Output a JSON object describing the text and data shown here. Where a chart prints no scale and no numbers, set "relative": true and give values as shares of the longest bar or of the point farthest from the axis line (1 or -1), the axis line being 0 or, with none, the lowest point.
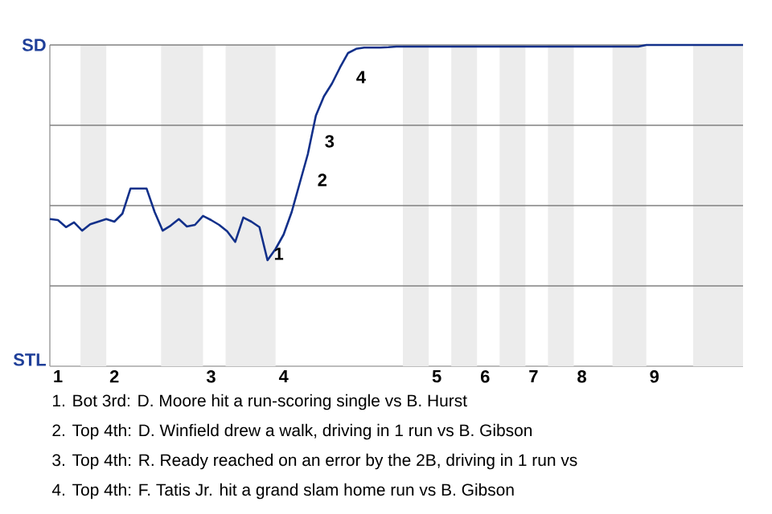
{
  "chart_data": {
    "type": "line",
    "relative": true,
    "categories": [
      null,
      "1",
      null,
      null,
      null,
      null,
      null,
      null,
      "2",
      null,
      null,
      null,
      null,
      null,
      null,
      null,
      null,
      null,
      null,
      null,
      "3",
      null,
      null,
      null,
      null,
      null,
      null,
      null,
      null,
      "4",
      null,
      null,
      null,
      null,
      null,
      null,
      null,
      null,
      null,
      null,
      null,
      null,
      null,
      null,
      null,
      null,
      null,
      null,
      "5",
      null,
      null,
      null,
      null,
      null,
      "6",
      null,
      null,
      null,
      null,
      null,
      "7",
      null,
      null,
      null,
      null,
      null,
      "8",
      null,
      null,
      null,
      null,
      null,
      null,
      null,
      null,
      "9",
      null,
      null,
      null,
      null,
      null,
      null,
      null,
      null,
      null,
      null,
      null
    ],
    "series": [
      {
        "color": "#12308a",
        "values": [
          0.458,
          0.455,
          0.433,
          0.448,
          0.422,
          0.442,
          0.45,
          0.458,
          0.45,
          0.475,
          0.553,
          0.553,
          0.553,
          0.48,
          0.422,
          0.438,
          0.458,
          0.435,
          0.44,
          0.468,
          0.455,
          0.44,
          0.42,
          0.387,
          0.463,
          0.45,
          0.433,
          0.33,
          0.365,
          0.41,
          0.48,
          0.57,
          0.66,
          0.78,
          0.84,
          0.88,
          0.93,
          0.975,
          0.988,
          0.992,
          0.992,
          0.992,
          0.993,
          0.995,
          0.995,
          0.995,
          0.995,
          0.995,
          0.995,
          0.995,
          0.995,
          0.995,
          0.995,
          0.995,
          0.995,
          0.995,
          0.995,
          0.995,
          0.995,
          0.995,
          0.995,
          0.995,
          0.995,
          0.995,
          0.995,
          0.995,
          0.995,
          0.995,
          0.995,
          0.995,
          0.995,
          0.995,
          0.995,
          0.995,
          1,
          1,
          1,
          1,
          1,
          1,
          1,
          1,
          1,
          1,
          1,
          1,
          1
        ]
      }
    ],
    "grid": "y",
    "marker": "none",
    "line_style": "solid",
    "annotations": [
      "SD",
      "STL",
      "1",
      "2",
      "3",
      "4",
      "1. Bot 3rd: D. Moore hit a run-scoring single vs B. Hurst",
      "2. Top 4th: D. Winfield drew a walk, driving in 1 run vs B. Gibson",
      "3. Top 4th: R. Ready reached on an error by the 2B, driving in 1 run vs",
      "4. Top 4th: F. Tatis Jr. hit a grand slam home run vs B. Gibson"
    ]
  }
}
